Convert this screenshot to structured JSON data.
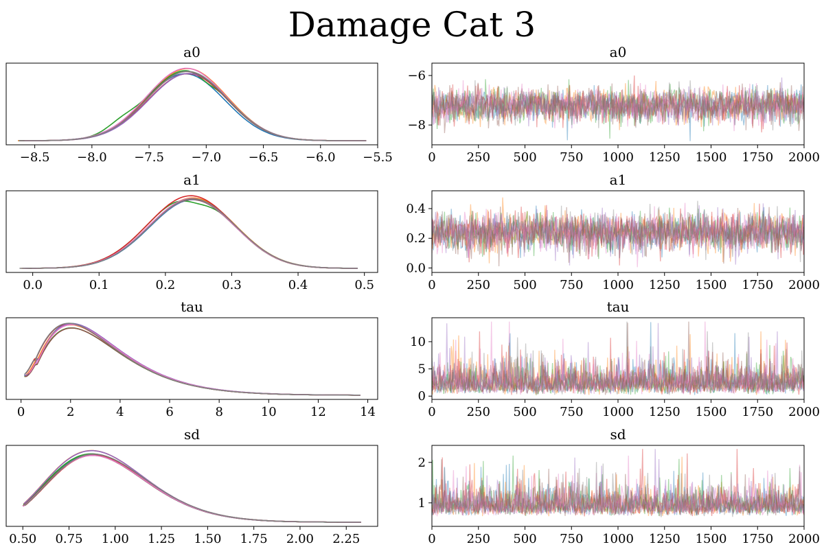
{
  "figure": {
    "title": "Damage Cat 3"
  },
  "colors": [
    "#1f77b4",
    "#ff7f0e",
    "#2ca02c",
    "#d62728",
    "#9467bd",
    "#8c564b",
    "#e377c2",
    "#7f7f7f"
  ],
  "chart_data": [
    {
      "type": "line",
      "kind": "kde",
      "title": "a0",
      "xlabel": "",
      "ylabel": "",
      "xlim": [
        -8.75,
        -5.5
      ],
      "xticks": [
        -8.5,
        -8.0,
        -7.5,
        -7.0,
        -6.5,
        -6.0,
        -5.5
      ],
      "xtick_labels": [
        "−8.5",
        "−8.0",
        "−7.5",
        "−7.0",
        "−6.5",
        "−6.0",
        "−5.5"
      ],
      "yticks": [],
      "grid": false,
      "legend": false,
      "support": [
        -8.65,
        -5.6
      ],
      "mode": -7.17,
      "sd": 0.35,
      "chains": 8,
      "n_draws": 2000
    },
    {
      "type": "line",
      "kind": "trace",
      "title": "a0",
      "xlabel": "",
      "ylabel": "",
      "xlim": [
        0,
        2000
      ],
      "ylim": [
        -8.8,
        -5.5
      ],
      "xticks": [
        0,
        250,
        500,
        750,
        1000,
        1250,
        1500,
        1750,
        2000
      ],
      "xtick_labels": [
        "0",
        "250",
        "500",
        "750",
        "1000",
        "1250",
        "1500",
        "1750",
        "2000"
      ],
      "yticks": [
        -8,
        -6
      ],
      "ytick_labels": [
        "−8",
        "−6"
      ],
      "grid": false,
      "legend": false,
      "mean": -7.2,
      "sd": 0.35,
      "range": [
        -8.65,
        -5.65
      ],
      "chains": 8,
      "n_draws": 2000
    },
    {
      "type": "line",
      "kind": "kde",
      "title": "a1",
      "xlabel": "",
      "ylabel": "",
      "xlim": [
        -0.04,
        0.52
      ],
      "xticks": [
        0.0,
        0.1,
        0.2,
        0.3,
        0.4,
        0.5
      ],
      "xtick_labels": [
        "0.0",
        "0.1",
        "0.2",
        "0.3",
        "0.4",
        "0.5"
      ],
      "yticks": [],
      "grid": false,
      "legend": false,
      "support": [
        -0.02,
        0.49
      ],
      "mode": 0.24,
      "sd": 0.065,
      "chains": 8,
      "n_draws": 2000
    },
    {
      "type": "line",
      "kind": "trace",
      "title": "a1",
      "xlabel": "",
      "ylabel": "",
      "xlim": [
        0,
        2000
      ],
      "ylim": [
        -0.03,
        0.52
      ],
      "xticks": [
        0,
        250,
        500,
        750,
        1000,
        1250,
        1500,
        1750,
        2000
      ],
      "xtick_labels": [
        "0",
        "250",
        "500",
        "750",
        "1000",
        "1250",
        "1500",
        "1750",
        "2000"
      ],
      "yticks": [
        0.0,
        0.2,
        0.4
      ],
      "ytick_labels": [
        "0.0",
        "0.2",
        "0.4"
      ],
      "grid": false,
      "legend": false,
      "mean": 0.24,
      "sd": 0.065,
      "range": [
        -0.01,
        0.49
      ],
      "chains": 8,
      "n_draws": 2000
    },
    {
      "type": "line",
      "kind": "kde",
      "title": "tau",
      "xlabel": "",
      "ylabel": "",
      "xlim": [
        -0.6,
        14.4
      ],
      "xticks": [
        0,
        2,
        4,
        6,
        8,
        10,
        12,
        14
      ],
      "xtick_labels": [
        "0",
        "2",
        "4",
        "6",
        "8",
        "10",
        "12",
        "14"
      ],
      "yticks": [],
      "grid": false,
      "legend": false,
      "support": [
        0.1,
        13.7
      ],
      "mode": 2.0,
      "sd": 1.6,
      "chains": 8,
      "n_draws": 2000
    },
    {
      "type": "line",
      "kind": "trace",
      "title": "tau",
      "xlabel": "",
      "ylabel": "",
      "xlim": [
        0,
        2000
      ],
      "ylim": [
        -0.6,
        14.4
      ],
      "xticks": [
        0,
        250,
        500,
        750,
        1000,
        1250,
        1500,
        1750,
        2000
      ],
      "xtick_labels": [
        "0",
        "250",
        "500",
        "750",
        "1000",
        "1250",
        "1500",
        "1750",
        "2000"
      ],
      "yticks": [
        0,
        5,
        10
      ],
      "ytick_labels": [
        "0",
        "5",
        "10"
      ],
      "grid": false,
      "legend": false,
      "mean": 2.7,
      "sd": 1.6,
      "range": [
        0.1,
        13.7
      ],
      "chains": 8,
      "n_draws": 2000
    },
    {
      "type": "line",
      "kind": "kde",
      "title": "sd",
      "xlabel": "",
      "ylabel": "",
      "xlim": [
        0.41,
        2.42
      ],
      "xticks": [
        0.5,
        0.75,
        1.0,
        1.25,
        1.5,
        1.75,
        2.0,
        2.25
      ],
      "xtick_labels": [
        "0.50",
        "0.75",
        "1.00",
        "1.25",
        "1.50",
        "1.75",
        "2.00",
        "2.25"
      ],
      "yticks": [],
      "grid": false,
      "legend": false,
      "support": [
        0.5,
        2.33
      ],
      "mode": 0.9,
      "sd": 0.2,
      "chains": 8,
      "n_draws": 2000
    },
    {
      "type": "line",
      "kind": "trace",
      "title": "sd",
      "xlabel": "",
      "ylabel": "",
      "xlim": [
        0,
        2000
      ],
      "ylim": [
        0.42,
        2.42
      ],
      "xticks": [
        0,
        250,
        500,
        750,
        1000,
        1250,
        1500,
        1750,
        2000
      ],
      "xtick_labels": [
        "0",
        "250",
        "500",
        "750",
        "1000",
        "1250",
        "1500",
        "1750",
        "2000"
      ],
      "yticks": [
        1,
        2
      ],
      "ytick_labels": [
        "1",
        "2"
      ],
      "grid": false,
      "legend": false,
      "mean": 0.98,
      "sd": 0.2,
      "range": [
        0.5,
        2.33
      ],
      "chains": 8,
      "n_draws": 2000
    }
  ]
}
